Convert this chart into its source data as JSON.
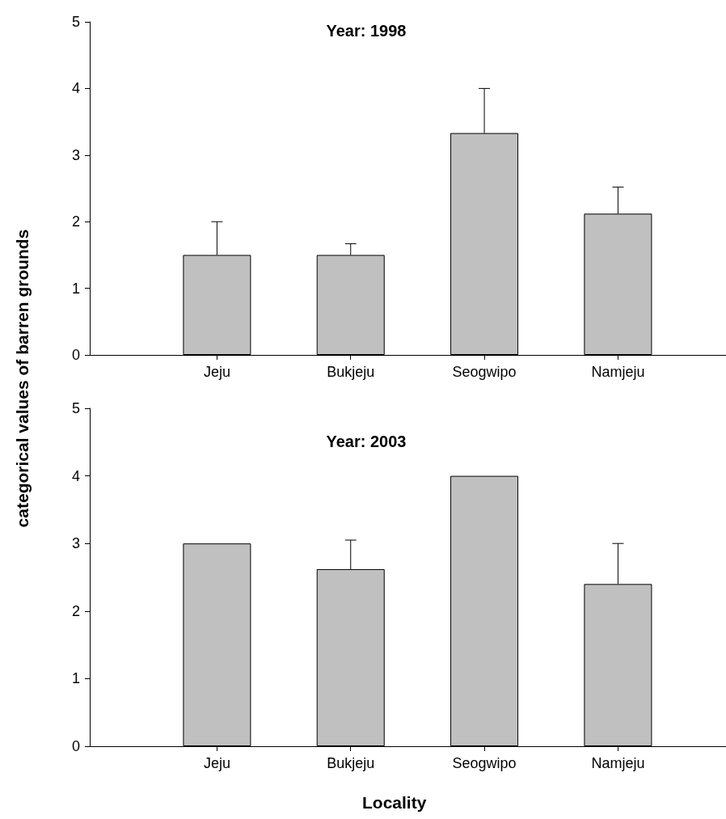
{
  "chart_data": [
    {
      "type": "bar",
      "title": "Year: 1998",
      "ylabel": "categorical values of barren grounds",
      "categories": [
        "Jeju",
        "Bukjeju",
        "Seogwipo",
        "Namjeju"
      ],
      "color": "#c0c0c0",
      "values": [
        1.5,
        1.5,
        3.33,
        2.12
      ],
      "errors": [
        [
          1.5,
          2.0
        ],
        [
          1.5,
          1.67
        ],
        [
          3.33,
          4.0
        ],
        [
          2.12,
          2.52
        ]
      ],
      "ylim": [
        0,
        5
      ],
      "yticks": [
        0,
        1,
        2,
        3,
        4,
        5
      ],
      "grid": false
    },
    {
      "type": "bar",
      "title": "Year: 2003",
      "xlabel": "Locality",
      "categories": [
        "Jeju",
        "Bukjeju",
        "Seogwipo",
        "Namjeju"
      ],
      "color": "#c0c0c0",
      "values": [
        3.0,
        2.62,
        4.0,
        2.4
      ],
      "errors": [
        null,
        [
          2.62,
          3.05
        ],
        null,
        [
          2.4,
          3.0
        ]
      ],
      "ylim": [
        0,
        5
      ],
      "yticks": [
        0,
        1,
        2,
        3,
        4,
        5
      ],
      "grid": false
    }
  ]
}
